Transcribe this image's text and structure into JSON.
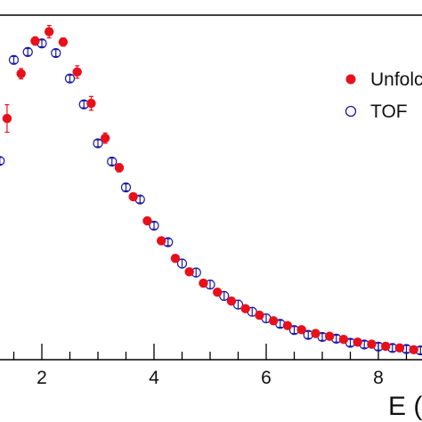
{
  "chart_data": {
    "type": "scatter",
    "title": "",
    "xlabel": "E (",
    "ylabel": "",
    "xlim": [
      1.3,
      8.75
    ],
    "ylim": [
      0,
      1.0
    ],
    "x_ticks": [
      "2",
      "4",
      "6",
      "8"
    ],
    "grid": false,
    "legend_position": "top-right",
    "series": [
      {
        "name": "Unfolc",
        "marker": "filled-circle",
        "color": "#e8101a",
        "error_color": "#e8101a",
        "points": [
          {
            "x": 1.38,
            "y": 0.7,
            "err": 0.04
          },
          {
            "x": 1.63,
            "y": 0.83,
            "err": 0.015
          },
          {
            "x": 1.88,
            "y": 0.925,
            "err": 0.012
          },
          {
            "x": 2.13,
            "y": 0.952,
            "err": 0.018
          },
          {
            "x": 2.38,
            "y": 0.922,
            "err": 0.012
          },
          {
            "x": 2.63,
            "y": 0.835,
            "err": 0.018
          },
          {
            "x": 2.88,
            "y": 0.744,
            "err": 0.02
          },
          {
            "x": 3.13,
            "y": 0.643,
            "err": 0.015
          },
          {
            "x": 3.38,
            "y": 0.557,
            "err": 0.012
          },
          {
            "x": 3.63,
            "y": 0.473,
            "err": 0.01
          },
          {
            "x": 3.88,
            "y": 0.403,
            "err": 0.01
          },
          {
            "x": 4.13,
            "y": 0.345,
            "err": 0.008
          },
          {
            "x": 4.38,
            "y": 0.294,
            "err": 0.007
          },
          {
            "x": 4.63,
            "y": 0.255,
            "err": 0.006
          },
          {
            "x": 4.88,
            "y": 0.222,
            "err": 0.005
          },
          {
            "x": 5.13,
            "y": 0.196,
            "err": 0.005
          },
          {
            "x": 5.38,
            "y": 0.17,
            "err": 0.005
          },
          {
            "x": 5.63,
            "y": 0.148,
            "err": 0.005
          },
          {
            "x": 5.88,
            "y": 0.129,
            "err": 0.005
          },
          {
            "x": 6.13,
            "y": 0.113,
            "err": 0.005
          },
          {
            "x": 6.38,
            "y": 0.099,
            "err": 0.005
          },
          {
            "x": 6.63,
            "y": 0.087,
            "err": 0.005
          },
          {
            "x": 6.88,
            "y": 0.076,
            "err": 0.005
          },
          {
            "x": 7.13,
            "y": 0.068,
            "err": 0.005
          },
          {
            "x": 7.38,
            "y": 0.059,
            "err": 0.005
          },
          {
            "x": 7.63,
            "y": 0.051,
            "err": 0.005
          },
          {
            "x": 7.88,
            "y": 0.045,
            "err": 0.005
          },
          {
            "x": 8.13,
            "y": 0.039,
            "err": 0.005
          },
          {
            "x": 8.38,
            "y": 0.034,
            "err": 0.005
          },
          {
            "x": 8.63,
            "y": 0.029,
            "err": 0.005
          }
        ]
      },
      {
        "name": "TOF",
        "marker": "open-circle",
        "color": "#1a1aa8",
        "error_color": "#1a1aa8",
        "points": [
          {
            "x": 1.25,
            "y": 0.577,
            "err": 0.01
          },
          {
            "x": 1.5,
            "y": 0.87,
            "err": 0.01
          },
          {
            "x": 1.75,
            "y": 0.893,
            "err": 0.01
          },
          {
            "x": 2.0,
            "y": 0.918,
            "err": 0.01
          },
          {
            "x": 2.25,
            "y": 0.89,
            "err": 0.01
          },
          {
            "x": 2.5,
            "y": 0.816,
            "err": 0.01
          },
          {
            "x": 2.75,
            "y": 0.741,
            "err": 0.01
          },
          {
            "x": 3.0,
            "y": 0.628,
            "err": 0.01
          },
          {
            "x": 3.25,
            "y": 0.575,
            "err": 0.01
          },
          {
            "x": 3.5,
            "y": 0.5,
            "err": 0.01
          },
          {
            "x": 3.75,
            "y": 0.465,
            "err": 0.01
          },
          {
            "x": 4.0,
            "y": 0.389,
            "err": 0.01
          },
          {
            "x": 4.25,
            "y": 0.341,
            "err": 0.01
          },
          {
            "x": 4.5,
            "y": 0.279,
            "err": 0.012
          },
          {
            "x": 4.75,
            "y": 0.253,
            "err": 0.012
          },
          {
            "x": 5.0,
            "y": 0.218,
            "err": 0.012
          },
          {
            "x": 5.25,
            "y": 0.185,
            "err": 0.012
          },
          {
            "x": 5.5,
            "y": 0.16,
            "err": 0.012
          },
          {
            "x": 5.75,
            "y": 0.139,
            "err": 0.012
          },
          {
            "x": 6.0,
            "y": 0.12,
            "err": 0.012
          },
          {
            "x": 6.25,
            "y": 0.104,
            "err": 0.01
          },
          {
            "x": 6.5,
            "y": 0.086,
            "err": 0.01
          },
          {
            "x": 6.75,
            "y": 0.072,
            "err": 0.01
          },
          {
            "x": 7.0,
            "y": 0.066,
            "err": 0.01
          },
          {
            "x": 7.25,
            "y": 0.061,
            "err": 0.01
          },
          {
            "x": 7.5,
            "y": 0.049,
            "err": 0.01
          },
          {
            "x": 7.75,
            "y": 0.044,
            "err": 0.01
          },
          {
            "x": 8.0,
            "y": 0.038,
            "err": 0.01
          },
          {
            "x": 8.25,
            "y": 0.034,
            "err": 0.01
          },
          {
            "x": 8.5,
            "y": 0.031,
            "err": 0.01
          },
          {
            "x": 8.75,
            "y": 0.027,
            "err": 0.01
          }
        ]
      }
    ]
  }
}
